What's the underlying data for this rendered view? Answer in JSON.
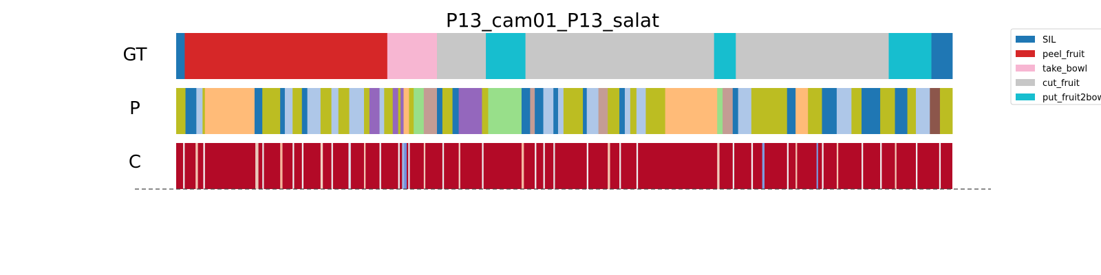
{
  "chart_data": {
    "type": "segmentation-timeline",
    "title": "P13_cam01_P13_salat",
    "x_domain": [
      0,
      1
    ],
    "legend_placement": "top-right",
    "legend": [
      {
        "label": "SIL",
        "color": "#1f77b4"
      },
      {
        "label": "peel_fruit",
        "color": "#d62728"
      },
      {
        "label": "take_bowl",
        "color": "#f7b6d2"
      },
      {
        "label": "cut_fruit",
        "color": "#c7c7c7"
      },
      {
        "label": "put_fruit2bow",
        "color": "#17becf"
      }
    ],
    "rows": [
      {
        "label": "GT",
        "segments": [
          {
            "start": 0.0,
            "end": 0.011,
            "color": "#1f77b4"
          },
          {
            "start": 0.011,
            "end": 0.272,
            "color": "#d62728"
          },
          {
            "start": 0.272,
            "end": 0.336,
            "color": "#f7b6d2"
          },
          {
            "start": 0.336,
            "end": 0.399,
            "color": "#c7c7c7"
          },
          {
            "start": 0.399,
            "end": 0.45,
            "color": "#17becf"
          },
          {
            "start": 0.45,
            "end": 0.693,
            "color": "#c7c7c7"
          },
          {
            "start": 0.693,
            "end": 0.721,
            "color": "#17becf"
          },
          {
            "start": 0.721,
            "end": 0.918,
            "color": "#c7c7c7"
          },
          {
            "start": 0.918,
            "end": 0.973,
            "color": "#17becf"
          },
          {
            "start": 0.973,
            "end": 1.0,
            "color": "#1f77b4"
          }
        ]
      },
      {
        "label": "P",
        "segments": [
          {
            "start": 0.0,
            "end": 0.012,
            "color": "#bcbd22"
          },
          {
            "start": 0.012,
            "end": 0.026,
            "color": "#1f77b4"
          },
          {
            "start": 0.026,
            "end": 0.034,
            "color": "#aec7e8"
          },
          {
            "start": 0.034,
            "end": 0.037,
            "color": "#bcbd22"
          },
          {
            "start": 0.037,
            "end": 0.101,
            "color": "#ffbb78"
          },
          {
            "start": 0.101,
            "end": 0.111,
            "color": "#1f77b4"
          },
          {
            "start": 0.111,
            "end": 0.134,
            "color": "#bcbd22"
          },
          {
            "start": 0.134,
            "end": 0.14,
            "color": "#1f77b4"
          },
          {
            "start": 0.14,
            "end": 0.15,
            "color": "#aec7e8"
          },
          {
            "start": 0.15,
            "end": 0.162,
            "color": "#bcbd22"
          },
          {
            "start": 0.162,
            "end": 0.169,
            "color": "#1f77b4"
          },
          {
            "start": 0.169,
            "end": 0.186,
            "color": "#aec7e8"
          },
          {
            "start": 0.186,
            "end": 0.2,
            "color": "#bcbd22"
          },
          {
            "start": 0.2,
            "end": 0.209,
            "color": "#aec7e8"
          },
          {
            "start": 0.209,
            "end": 0.223,
            "color": "#bcbd22"
          },
          {
            "start": 0.223,
            "end": 0.242,
            "color": "#aec7e8"
          },
          {
            "start": 0.242,
            "end": 0.249,
            "color": "#bcbd22"
          },
          {
            "start": 0.249,
            "end": 0.262,
            "color": "#9467bd"
          },
          {
            "start": 0.262,
            "end": 0.268,
            "color": "#aec7e8"
          },
          {
            "start": 0.268,
            "end": 0.279,
            "color": "#bcbd22"
          },
          {
            "start": 0.279,
            "end": 0.286,
            "color": "#9467bd"
          },
          {
            "start": 0.286,
            "end": 0.289,
            "color": "#bcbd22"
          },
          {
            "start": 0.289,
            "end": 0.293,
            "color": "#9467bd"
          },
          {
            "start": 0.293,
            "end": 0.3,
            "color": "#ffbb78"
          },
          {
            "start": 0.3,
            "end": 0.306,
            "color": "#bcbd22"
          },
          {
            "start": 0.306,
            "end": 0.319,
            "color": "#98df8a"
          },
          {
            "start": 0.319,
            "end": 0.336,
            "color": "#c49c94"
          },
          {
            "start": 0.336,
            "end": 0.343,
            "color": "#1f77b4"
          },
          {
            "start": 0.343,
            "end": 0.356,
            "color": "#bcbd22"
          },
          {
            "start": 0.356,
            "end": 0.364,
            "color": "#1f77b4"
          },
          {
            "start": 0.364,
            "end": 0.394,
            "color": "#9467bd"
          },
          {
            "start": 0.394,
            "end": 0.402,
            "color": "#bcbd22"
          },
          {
            "start": 0.402,
            "end": 0.445,
            "color": "#98df8a"
          },
          {
            "start": 0.445,
            "end": 0.456,
            "color": "#1f77b4"
          },
          {
            "start": 0.456,
            "end": 0.462,
            "color": "#c49c94"
          },
          {
            "start": 0.462,
            "end": 0.473,
            "color": "#1f77b4"
          },
          {
            "start": 0.473,
            "end": 0.486,
            "color": "#aec7e8"
          },
          {
            "start": 0.486,
            "end": 0.492,
            "color": "#1f77b4"
          },
          {
            "start": 0.492,
            "end": 0.499,
            "color": "#aec7e8"
          },
          {
            "start": 0.499,
            "end": 0.524,
            "color": "#bcbd22"
          },
          {
            "start": 0.524,
            "end": 0.529,
            "color": "#1f77b4"
          },
          {
            "start": 0.529,
            "end": 0.544,
            "color": "#aec7e8"
          },
          {
            "start": 0.544,
            "end": 0.556,
            "color": "#c49c94"
          },
          {
            "start": 0.556,
            "end": 0.571,
            "color": "#bcbd22"
          },
          {
            "start": 0.571,
            "end": 0.578,
            "color": "#1f77b4"
          },
          {
            "start": 0.578,
            "end": 0.585,
            "color": "#aec7e8"
          },
          {
            "start": 0.585,
            "end": 0.593,
            "color": "#bcbd22"
          },
          {
            "start": 0.593,
            "end": 0.605,
            "color": "#aec7e8"
          },
          {
            "start": 0.605,
            "end": 0.63,
            "color": "#bcbd22"
          },
          {
            "start": 0.63,
            "end": 0.697,
            "color": "#ffbb78"
          },
          {
            "start": 0.697,
            "end": 0.704,
            "color": "#98df8a"
          },
          {
            "start": 0.704,
            "end": 0.717,
            "color": "#c49c94"
          },
          {
            "start": 0.717,
            "end": 0.724,
            "color": "#1f77b4"
          },
          {
            "start": 0.724,
            "end": 0.741,
            "color": "#aec7e8"
          },
          {
            "start": 0.741,
            "end": 0.76,
            "color": "#bcbd22"
          },
          {
            "start": 0.76,
            "end": 0.787,
            "color": "#bcbd22"
          },
          {
            "start": 0.787,
            "end": 0.798,
            "color": "#1f77b4"
          },
          {
            "start": 0.798,
            "end": 0.814,
            "color": "#ffbb78"
          },
          {
            "start": 0.814,
            "end": 0.832,
            "color": "#bcbd22"
          },
          {
            "start": 0.832,
            "end": 0.851,
            "color": "#1f77b4"
          },
          {
            "start": 0.851,
            "end": 0.87,
            "color": "#aec7e8"
          },
          {
            "start": 0.87,
            "end": 0.883,
            "color": "#bcbd22"
          },
          {
            "start": 0.883,
            "end": 0.907,
            "color": "#1f77b4"
          },
          {
            "start": 0.907,
            "end": 0.926,
            "color": "#bcbd22"
          },
          {
            "start": 0.926,
            "end": 0.942,
            "color": "#1f77b4"
          },
          {
            "start": 0.942,
            "end": 0.953,
            "color": "#bcbd22"
          },
          {
            "start": 0.953,
            "end": 0.971,
            "color": "#aec7e8"
          },
          {
            "start": 0.971,
            "end": 0.984,
            "color": "#8c564b"
          },
          {
            "start": 0.984,
            "end": 1.0,
            "color": "#bcbd22"
          }
        ]
      },
      {
        "label": "C",
        "base_color": "#b30a27",
        "stripes": [
          {
            "pos": 0.009,
            "width": 0.002,
            "color": "#f1f1f1"
          },
          {
            "pos": 0.025,
            "width": 0.003,
            "color": "#f2c2b0"
          },
          {
            "pos": 0.035,
            "width": 0.002,
            "color": "#f7f7f7"
          },
          {
            "pos": 0.102,
            "width": 0.004,
            "color": "#e9c9bb"
          },
          {
            "pos": 0.111,
            "width": 0.002,
            "color": "#e8e8e8"
          },
          {
            "pos": 0.134,
            "width": 0.003,
            "color": "#f4b39b"
          },
          {
            "pos": 0.15,
            "width": 0.002,
            "color": "#eeeeee"
          },
          {
            "pos": 0.162,
            "width": 0.002,
            "color": "#f0f0f0"
          },
          {
            "pos": 0.186,
            "width": 0.003,
            "color": "#f3d1c2"
          },
          {
            "pos": 0.2,
            "width": 0.002,
            "color": "#ededed"
          },
          {
            "pos": 0.222,
            "width": 0.003,
            "color": "#dfe6f1"
          },
          {
            "pos": 0.242,
            "width": 0.002,
            "color": "#f5c7b4"
          },
          {
            "pos": 0.262,
            "width": 0.002,
            "color": "#eeeeee"
          },
          {
            "pos": 0.286,
            "width": 0.002,
            "color": "#f0f0f0"
          },
          {
            "pos": 0.291,
            "width": 0.003,
            "color": "#9bb4e2"
          },
          {
            "pos": 0.294,
            "width": 0.003,
            "color": "#6f8fe0"
          },
          {
            "pos": 0.299,
            "width": 0.002,
            "color": "#dfe3ee"
          },
          {
            "pos": 0.319,
            "width": 0.002,
            "color": "#f1c8b8"
          },
          {
            "pos": 0.343,
            "width": 0.002,
            "color": "#e8e8e8"
          },
          {
            "pos": 0.364,
            "width": 0.002,
            "color": "#f2d3c5"
          },
          {
            "pos": 0.394,
            "width": 0.002,
            "color": "#eeeeee"
          },
          {
            "pos": 0.445,
            "width": 0.003,
            "color": "#f4b9a2"
          },
          {
            "pos": 0.462,
            "width": 0.002,
            "color": "#f0f0f0"
          },
          {
            "pos": 0.473,
            "width": 0.002,
            "color": "#eeeeee"
          },
          {
            "pos": 0.486,
            "width": 0.002,
            "color": "#e6e6e6"
          },
          {
            "pos": 0.529,
            "width": 0.002,
            "color": "#f0f0f0"
          },
          {
            "pos": 0.556,
            "width": 0.003,
            "color": "#f4c3ae"
          },
          {
            "pos": 0.571,
            "width": 0.002,
            "color": "#ececec"
          },
          {
            "pos": 0.593,
            "width": 0.002,
            "color": "#efefef"
          },
          {
            "pos": 0.697,
            "width": 0.003,
            "color": "#f1cbbc"
          },
          {
            "pos": 0.717,
            "width": 0.002,
            "color": "#e9e9e9"
          },
          {
            "pos": 0.741,
            "width": 0.002,
            "color": "#f3f3f3"
          },
          {
            "pos": 0.755,
            "width": 0.003,
            "color": "#7e9be0"
          },
          {
            "pos": 0.787,
            "width": 0.002,
            "color": "#ededed"
          },
          {
            "pos": 0.798,
            "width": 0.002,
            "color": "#f3c3b1"
          },
          {
            "pos": 0.825,
            "width": 0.002,
            "color": "#7c98dd"
          },
          {
            "pos": 0.832,
            "width": 0.002,
            "color": "#f0f0f0"
          },
          {
            "pos": 0.851,
            "width": 0.002,
            "color": "#f4c6b3"
          },
          {
            "pos": 0.883,
            "width": 0.002,
            "color": "#ededed"
          },
          {
            "pos": 0.907,
            "width": 0.002,
            "color": "#f1f1f1"
          },
          {
            "pos": 0.926,
            "width": 0.002,
            "color": "#f4c8b6"
          },
          {
            "pos": 0.953,
            "width": 0.002,
            "color": "#eeeeee"
          },
          {
            "pos": 0.983,
            "width": 0.002,
            "color": "#f0f0f0"
          }
        ]
      }
    ]
  }
}
